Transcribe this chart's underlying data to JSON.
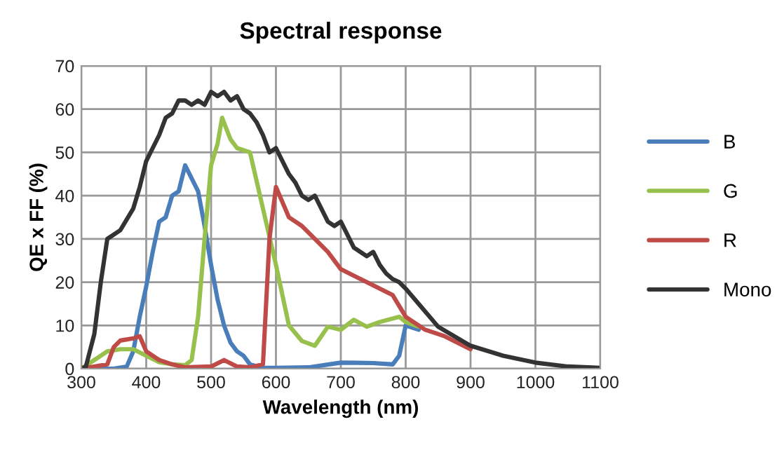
{
  "chart_data": {
    "type": "line",
    "title": "Spectral response",
    "xlabel": "Wavelength (nm)",
    "ylabel": "QE x FF (%)",
    "xlim": [
      300,
      1100
    ],
    "xticks": [
      300,
      400,
      500,
      600,
      700,
      800,
      900,
      1000,
      1100
    ],
    "ylim": [
      0,
      70
    ],
    "yticks": [
      0,
      10,
      20,
      30,
      40,
      50,
      60,
      70
    ],
    "grid": true,
    "legend": "right",
    "marker": "none",
    "line_style": "solid",
    "series": [
      {
        "name": "B",
        "color": "#4a7ebb",
        "x": [
          300,
          350,
          370,
          380,
          390,
          400,
          410,
          420,
          430,
          440,
          450,
          460,
          470,
          480,
          490,
          500,
          510,
          520,
          530,
          540,
          550,
          560,
          580,
          600,
          650,
          700,
          750,
          780,
          790,
          800,
          820
        ],
        "values": [
          0,
          0,
          0.5,
          4,
          12,
          19,
          27,
          34,
          35,
          40,
          41,
          47,
          44,
          41,
          33,
          24,
          16,
          10,
          6,
          4,
          3,
          1,
          0.2,
          0.2,
          0.3,
          1.4,
          1.3,
          1,
          3,
          10,
          9
        ]
      },
      {
        "name": "G",
        "color": "#98c04c",
        "x": [
          300,
          320,
          340,
          360,
          380,
          400,
          420,
          440,
          460,
          470,
          480,
          490,
          500,
          510,
          517,
          530,
          540,
          560,
          580,
          600,
          620,
          640,
          660,
          680,
          700,
          720,
          740,
          760,
          790,
          800,
          820
        ],
        "values": [
          0,
          2,
          4,
          4.5,
          4.5,
          3,
          1.5,
          1,
          0.8,
          2,
          12,
          30,
          47,
          52,
          58,
          53,
          51,
          50,
          37,
          24,
          10,
          6.4,
          5.3,
          9.7,
          9,
          11.3,
          9.7,
          10.8,
          12,
          10.8,
          9.7
        ]
      },
      {
        "name": "R",
        "color": "#be4b48",
        "x": [
          300,
          340,
          350,
          360,
          380,
          390,
          400,
          420,
          440,
          460,
          500,
          520,
          540,
          560,
          580,
          590,
          600,
          620,
          640,
          660,
          680,
          700,
          740,
          780,
          800,
          830,
          860,
          900
        ],
        "values": [
          0,
          1,
          5,
          6.5,
          7,
          7.5,
          4,
          2,
          1,
          0.3,
          0.5,
          2,
          0.5,
          0.3,
          1,
          30,
          42,
          35,
          33,
          30,
          27,
          23,
          20,
          17,
          12,
          9,
          7.5,
          4.5
        ]
      },
      {
        "name": "Mono",
        "color": "#333333",
        "x": [
          300,
          307,
          320,
          330,
          340,
          360,
          380,
          390,
          400,
          410,
          420,
          430,
          440,
          450,
          460,
          470,
          480,
          490,
          500,
          510,
          520,
          530,
          540,
          550,
          560,
          570,
          580,
          590,
          600,
          610,
          620,
          630,
          640,
          650,
          660,
          670,
          680,
          690,
          700,
          710,
          720,
          730,
          740,
          750,
          760,
          770,
          780,
          790,
          800,
          820,
          850,
          900,
          950,
          1000,
          1050,
          1100
        ],
        "values": [
          0,
          0.5,
          8,
          20,
          30,
          32,
          37,
          42,
          48,
          51,
          54,
          58,
          59,
          62,
          62,
          61,
          62,
          61,
          64,
          63,
          64,
          62,
          63,
          60,
          59,
          57,
          54,
          50,
          51,
          48,
          45,
          43,
          40,
          39,
          40,
          37,
          34,
          33,
          34,
          31,
          28,
          27,
          26,
          27,
          24,
          22,
          20.7,
          20,
          18.5,
          15,
          9.7,
          5.3,
          3,
          1.4,
          0.5,
          0.2
        ]
      }
    ]
  }
}
